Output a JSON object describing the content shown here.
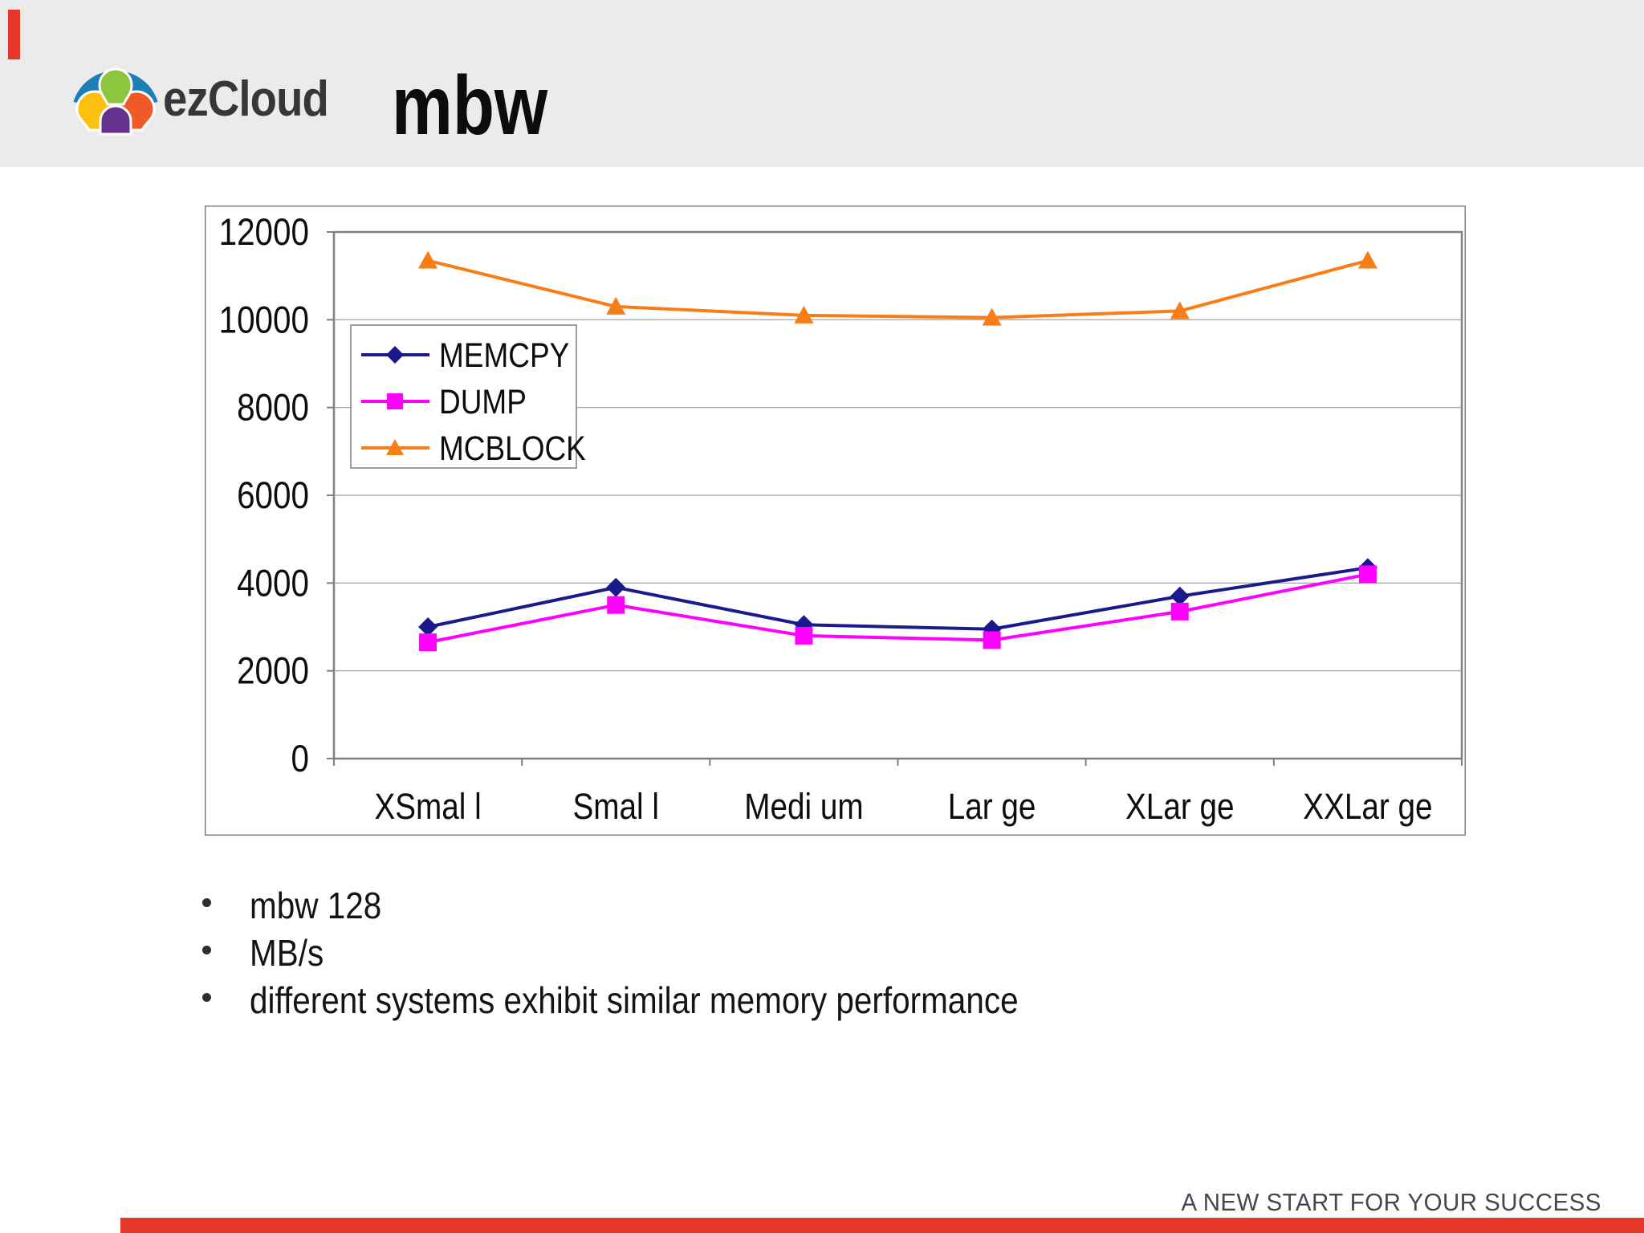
{
  "header": {
    "logo_text": "ezCloud",
    "title": "mbw"
  },
  "chart_data": {
    "type": "line",
    "title": "",
    "categories": [
      "XSmal l",
      "Smal l",
      "Medi um",
      "Lar ge",
      "XLar ge",
      "XXLar ge"
    ],
    "series": [
      {
        "name": "MEMCPY",
        "color": "#1a1a8c",
        "marker": "diamond",
        "values": [
          3000,
          3900,
          3050,
          2950,
          3700,
          4350
        ]
      },
      {
        "name": "DUMP",
        "color": "#ff00ff",
        "marker": "square",
        "values": [
          2650,
          3500,
          2800,
          2700,
          3350,
          4200
        ]
      },
      {
        "name": "MCBLOCK",
        "color": "#f97d16",
        "marker": "triangle",
        "values": [
          11350,
          10300,
          10100,
          10050,
          10200,
          11350
        ]
      }
    ],
    "ylim": [
      0,
      12000
    ],
    "yticks": [
      0,
      2000,
      4000,
      6000,
      8000,
      10000,
      12000
    ],
    "xlabel": "",
    "ylabel": "",
    "grid": true,
    "legend_position": "inside-top-left"
  },
  "bullets": [
    "mbw 128",
    "MB/s",
    "different systems exhibit similar memory performance"
  ],
  "footer": {
    "tagline": "A NEW START FOR YOUR SUCCESS"
  },
  "colors": {
    "header_bg": "#ebebeb",
    "accent_red": "#e5382b",
    "frame": "#7f7f7f",
    "grid": "#9a9a9a",
    "text": "#141414",
    "footer_text": "#46464e",
    "logo_blue": "#1e7fb8",
    "logo_green": "#8dc63f",
    "logo_yellow": "#fdc010",
    "logo_orange": "#f05a28",
    "logo_purple": "#66308f"
  }
}
